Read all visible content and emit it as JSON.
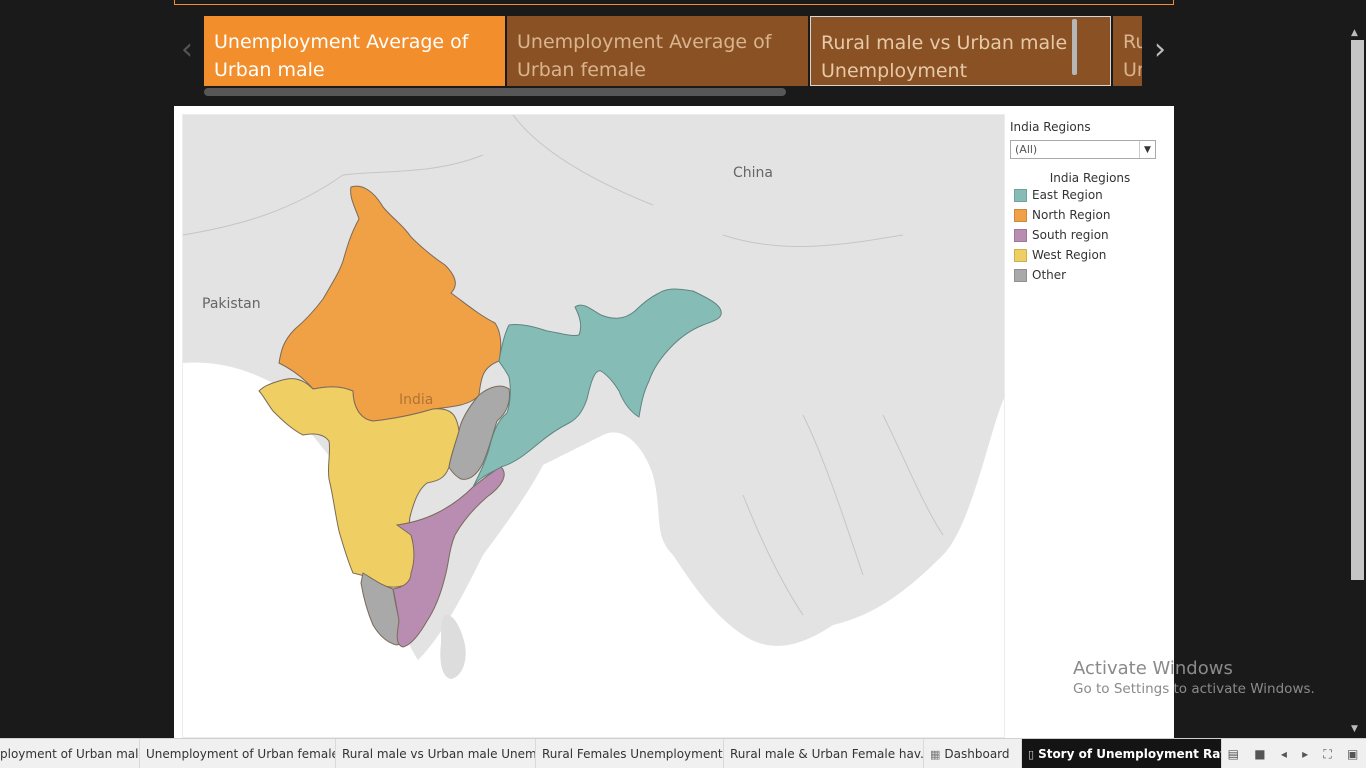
{
  "story_points": [
    {
      "label": "Unemployment Average of Urban male"
    },
    {
      "label": "Unemployment Average of Urban female"
    },
    {
      "label": "Rural male vs Urban male Unemployment"
    },
    {
      "label": "Ru Ur"
    }
  ],
  "navigation": {
    "prev_icon": "chevron-left-icon",
    "next_icon": "chevron-right-icon",
    "prev_glyph": "‹",
    "next_glyph": "›"
  },
  "map": {
    "country_labels": {
      "china": "China",
      "pakistan": "Pakistan",
      "india": "India"
    },
    "background_color": "#e3e3e3"
  },
  "filter": {
    "title": "India Regions",
    "selected": "(All)"
  },
  "legend": {
    "title": "India Regions",
    "items": [
      {
        "label": "East Region",
        "color": "#86bcb6"
      },
      {
        "label": "North Region",
        "color": "#f1a145"
      },
      {
        "label": "South region",
        "color": "#b98cb2"
      },
      {
        "label": "West Region",
        "color": "#efcf63"
      },
      {
        "label": "Other",
        "color": "#a9a9a9"
      }
    ]
  },
  "watermark": {
    "title": "Activate Windows",
    "subtitle": "Go to Settings to activate Windows."
  },
  "sheet_tabs": [
    {
      "label": "ployment of Urban male"
    },
    {
      "label": "Unemployment of Urban female"
    },
    {
      "label": "Rural male vs Urban male Unem..."
    },
    {
      "label": "Rural Females Unemployment"
    },
    {
      "label": "Rural male & Urban Female hav..."
    },
    {
      "label": "Dashboard",
      "icon": "dashboard-icon"
    },
    {
      "label": "Story of Unemployment Rat...",
      "icon": "story-icon",
      "active": true
    }
  ],
  "tab_controls": [
    "grid-view-icon",
    "filmstrip-icon",
    "prev-sheet-icon",
    "next-sheet-icon",
    "fullscreen-icon",
    "presentation-icon"
  ]
}
